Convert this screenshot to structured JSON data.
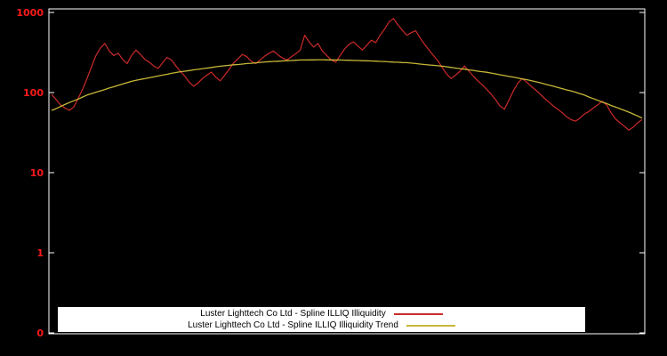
{
  "chart_data": {
    "type": "line",
    "title": "",
    "xlabel": "",
    "ylabel": "",
    "y_scale": "log",
    "ylim": [
      0.1,
      1000
    ],
    "background": "#000000",
    "frame_color": "#ffffff",
    "axis_label_color": "#ff1a1a",
    "grid": false,
    "x_tick_labels_visible": false,
    "legend_position": "bottom-center",
    "y_ticks": [
      {
        "value": 1000,
        "label": "1000"
      },
      {
        "value": 100,
        "label": "100"
      },
      {
        "value": 10,
        "label": "10"
      },
      {
        "value": 1,
        "label": "1"
      },
      {
        "value": 0.1,
        "label": "0"
      }
    ],
    "series": [
      {
        "name": "Luster Lighttech Co Ltd - Spline ILLIQ Illiquidity",
        "color": "#cc2a2a",
        "values": [
          95,
          82,
          70,
          64,
          60,
          66,
          85,
          110,
          150,
          210,
          290,
          360,
          410,
          330,
          290,
          310,
          260,
          230,
          290,
          340,
          300,
          260,
          240,
          215,
          200,
          235,
          275,
          255,
          215,
          185,
          160,
          135,
          120,
          132,
          150,
          165,
          180,
          155,
          140,
          165,
          195,
          235,
          265,
          300,
          280,
          245,
          230,
          255,
          285,
          310,
          330,
          295,
          270,
          255,
          280,
          305,
          340,
          520,
          430,
          370,
          410,
          330,
          290,
          255,
          240,
          290,
          350,
          400,
          430,
          380,
          340,
          390,
          450,
          420,
          520,
          620,
          760,
          840,
          700,
          600,
          520,
          560,
          590,
          480,
          400,
          340,
          290,
          250,
          205,
          170,
          150,
          165,
          185,
          215,
          185,
          160,
          140,
          125,
          110,
          95,
          82,
          68,
          62,
          80,
          105,
          130,
          150,
          135,
          120,
          108,
          96,
          85,
          76,
          68,
          62,
          56,
          50,
          46,
          44,
          48,
          54,
          58,
          64,
          70,
          78,
          70,
          56,
          47,
          42,
          38,
          34,
          37,
          42,
          46
        ]
      },
      {
        "name": "Luster Lighttech Co Ltd - Spline ILLIQ Illiquidity Trend",
        "color": "#c8b838",
        "values": [
          60,
          63,
          67,
          71,
          75,
          79,
          83,
          88,
          93,
          97,
          101,
          105,
          109,
          114,
          118,
          123,
          128,
          133,
          138,
          142,
          146,
          149,
          153,
          157,
          161,
          165,
          169,
          174,
          178,
          182,
          185,
          188,
          192,
          195,
          199,
          202,
          206,
          210,
          213,
          216,
          219,
          222,
          224,
          227,
          230,
          232,
          235,
          238,
          241,
          243,
          245,
          246,
          248,
          250,
          251,
          253,
          255,
          255,
          256,
          256,
          257,
          257,
          256,
          256,
          255,
          255,
          254,
          253,
          252,
          251,
          250,
          249,
          248,
          247,
          245,
          244,
          242,
          240,
          239,
          237,
          236,
          233,
          230,
          227,
          224,
          221,
          219,
          216,
          213,
          210,
          206,
          202,
          199,
          196,
          192,
          189,
          185,
          182,
          179,
          175,
          171,
          167,
          163,
          159,
          156,
          152,
          148,
          145,
          141,
          137,
          133,
          128,
          124,
          120,
          116,
          112,
          108,
          105,
          101,
          97,
          93,
          88,
          84,
          80,
          76,
          73,
          69,
          66,
          63,
          60,
          57,
          54,
          51,
          48
        ]
      }
    ]
  },
  "legend": {
    "items": [
      {
        "label": "Luster Lighttech Co Ltd - Spline ILLIQ Illiquidity",
        "color": "#cc2a2a"
      },
      {
        "label": "Luster Lighttech Co Ltd - Spline ILLIQ Illiquidity Trend",
        "color": "#c8b838"
      }
    ]
  }
}
